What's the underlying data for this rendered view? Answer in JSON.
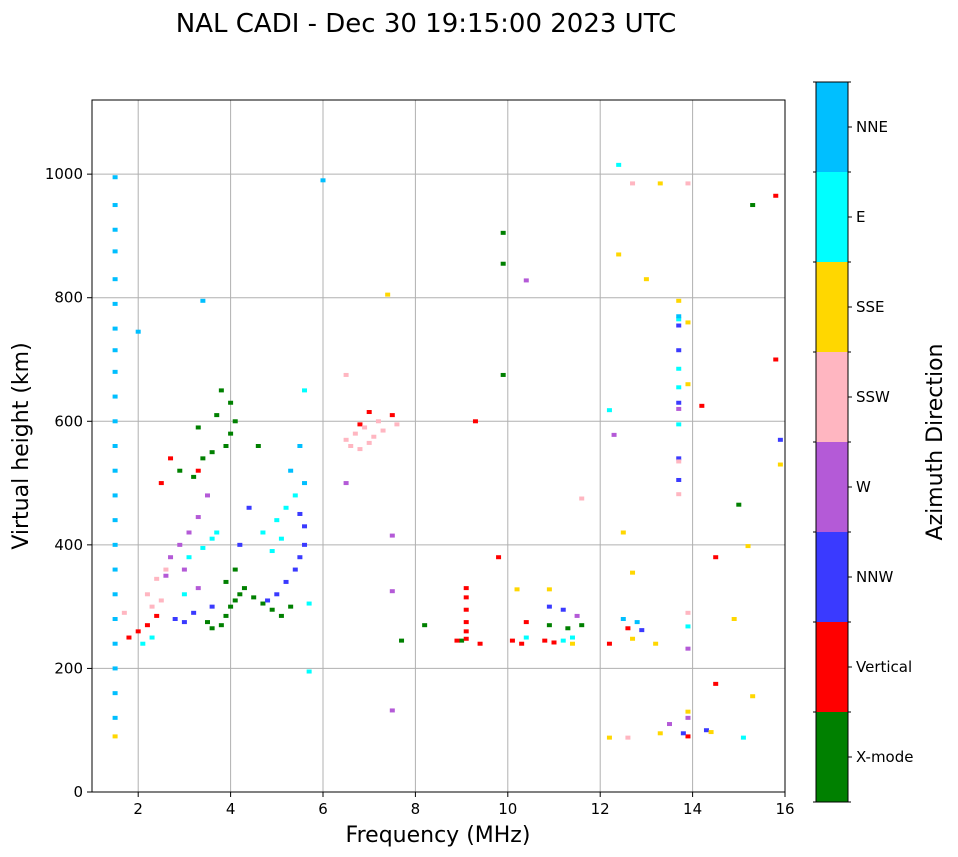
{
  "chart_data": {
    "type": "scatter",
    "title": "NAL CADI - Dec 30 19:15:00 2023 UTC",
    "xlabel": "Frequency (MHz)",
    "ylabel": "Virtual height (km)",
    "xlim": [
      1,
      16
    ],
    "ylim": [
      0,
      1120
    ],
    "xticks": [
      2,
      4,
      6,
      8,
      10,
      12,
      14,
      16
    ],
    "yticks": [
      0,
      200,
      400,
      600,
      800,
      1000
    ],
    "grid": true,
    "colorbar": {
      "label": "Azimuth Direction",
      "categories": [
        {
          "name": "X-mode",
          "color": "#008000"
        },
        {
          "name": "Vertical",
          "color": "#ff0000"
        },
        {
          "name": "NNW",
          "color": "#3a3aff"
        },
        {
          "name": "W",
          "color": "#b45ad7"
        },
        {
          "name": "SSW",
          "color": "#ffb6c1"
        },
        {
          "name": "SSE",
          "color": "#ffd700"
        },
        {
          "name": "E",
          "color": "#00ffff"
        },
        {
          "name": "NNE",
          "color": "#00bfff"
        }
      ]
    },
    "series": [
      {
        "name": "X-mode",
        "points": [
          [
            3.8,
            270
          ],
          [
            3.9,
            285
          ],
          [
            4.0,
            300
          ],
          [
            4.1,
            310
          ],
          [
            4.2,
            320
          ],
          [
            4.3,
            330
          ],
          [
            4.5,
            315
          ],
          [
            4.7,
            305
          ],
          [
            4.9,
            295
          ],
          [
            5.1,
            285
          ],
          [
            5.3,
            300
          ],
          [
            3.5,
            275
          ],
          [
            3.6,
            265
          ],
          [
            3.9,
            340
          ],
          [
            4.1,
            360
          ],
          [
            3.4,
            540
          ],
          [
            3.6,
            550
          ],
          [
            3.9,
            560
          ],
          [
            4.0,
            580
          ],
          [
            4.1,
            600
          ],
          [
            4.0,
            630
          ],
          [
            3.8,
            650
          ],
          [
            2.9,
            520
          ],
          [
            3.2,
            510
          ],
          [
            8.2,
            270
          ],
          [
            9.9,
            905
          ],
          [
            9.9,
            855
          ],
          [
            9.9,
            675
          ],
          [
            15.3,
            950
          ],
          [
            15.0,
            465
          ],
          [
            10.9,
            270
          ],
          [
            11.3,
            265
          ],
          [
            11.6,
            270
          ],
          [
            9.0,
            245
          ],
          [
            7.7,
            245
          ],
          [
            3.7,
            610
          ],
          [
            3.3,
            590
          ],
          [
            4.6,
            560
          ]
        ]
      },
      {
        "name": "Vertical",
        "points": [
          [
            8.9,
            245
          ],
          [
            9.1,
            248
          ],
          [
            9.4,
            240
          ],
          [
            10.1,
            245
          ],
          [
            10.3,
            240
          ],
          [
            10.8,
            245
          ],
          [
            11.0,
            242
          ],
          [
            12.2,
            240
          ],
          [
            14.5,
            380
          ],
          [
            15.8,
            965
          ],
          [
            15.8,
            700
          ],
          [
            14.2,
            625
          ],
          [
            9.3,
            600
          ],
          [
            9.8,
            380
          ],
          [
            9.1,
            330
          ],
          [
            9.1,
            315
          ],
          [
            9.1,
            295
          ],
          [
            9.1,
            275
          ],
          [
            9.1,
            260
          ],
          [
            12.6,
            265
          ],
          [
            13.9,
            90
          ],
          [
            1.8,
            250
          ],
          [
            2.0,
            260
          ],
          [
            2.2,
            270
          ],
          [
            2.4,
            285
          ],
          [
            7.5,
            610
          ],
          [
            7.0,
            615
          ],
          [
            2.7,
            540
          ],
          [
            2.5,
            500
          ],
          [
            3.3,
            520
          ],
          [
            14.5,
            175
          ],
          [
            10.4,
            275
          ],
          [
            6.8,
            595
          ]
        ]
      },
      {
        "name": "NNW",
        "points": [
          [
            5.5,
            380
          ],
          [
            5.4,
            360
          ],
          [
            5.2,
            340
          ],
          [
            5.0,
            320
          ],
          [
            4.8,
            310
          ],
          [
            5.6,
            400
          ],
          [
            5.6,
            430
          ],
          [
            5.5,
            450
          ],
          [
            2.8,
            280
          ],
          [
            3.0,
            275
          ],
          [
            3.2,
            290
          ],
          [
            13.7,
            715
          ],
          [
            13.7,
            755
          ],
          [
            13.7,
            540
          ],
          [
            13.7,
            505
          ],
          [
            13.7,
            630
          ],
          [
            15.9,
            570
          ],
          [
            12.9,
            262
          ],
          [
            11.2,
            295
          ],
          [
            10.9,
            300
          ],
          [
            14.3,
            100
          ],
          [
            13.8,
            95
          ],
          [
            4.2,
            400
          ],
          [
            4.4,
            460
          ],
          [
            3.6,
            300
          ]
        ]
      },
      {
        "name": "W",
        "points": [
          [
            2.9,
            400
          ],
          [
            3.1,
            420
          ],
          [
            3.3,
            445
          ],
          [
            3.5,
            480
          ],
          [
            2.7,
            380
          ],
          [
            3.0,
            360
          ],
          [
            10.4,
            828
          ],
          [
            13.7,
            620
          ],
          [
            13.9,
            232
          ],
          [
            13.5,
            110
          ],
          [
            7.5,
            415
          ],
          [
            7.5,
            325
          ],
          [
            7.5,
            132
          ],
          [
            11.5,
            285
          ],
          [
            6.5,
            500
          ],
          [
            13.9,
            120
          ],
          [
            12.3,
            578
          ],
          [
            3.3,
            330
          ],
          [
            2.6,
            350
          ]
        ]
      },
      {
        "name": "SSW",
        "points": [
          [
            6.5,
            570
          ],
          [
            6.7,
            580
          ],
          [
            6.9,
            590
          ],
          [
            7.1,
            575
          ],
          [
            7.3,
            585
          ],
          [
            7.6,
            595
          ],
          [
            6.6,
            560
          ],
          [
            7.0,
            565
          ],
          [
            7.2,
            600
          ],
          [
            6.8,
            555
          ],
          [
            6.5,
            675
          ],
          [
            12.7,
            985
          ],
          [
            13.9,
            985
          ],
          [
            12.6,
            88
          ],
          [
            13.7,
            535
          ],
          [
            13.7,
            482
          ],
          [
            2.2,
            320
          ],
          [
            2.4,
            345
          ],
          [
            2.6,
            360
          ],
          [
            2.3,
            300
          ],
          [
            2.5,
            310
          ],
          [
            1.7,
            290
          ],
          [
            11.6,
            475
          ],
          [
            13.9,
            290
          ]
        ]
      },
      {
        "name": "SSE",
        "points": [
          [
            13.3,
            985
          ],
          [
            12.4,
            870
          ],
          [
            13.0,
            830
          ],
          [
            13.7,
            795
          ],
          [
            13.9,
            760
          ],
          [
            13.9,
            660
          ],
          [
            15.9,
            530
          ],
          [
            15.2,
            398
          ],
          [
            15.3,
            155
          ],
          [
            14.4,
            97
          ],
          [
            13.3,
            95
          ],
          [
            13.9,
            130
          ],
          [
            12.7,
            248
          ],
          [
            13.2,
            240
          ],
          [
            14.9,
            280
          ],
          [
            7.4,
            805
          ],
          [
            10.2,
            328
          ],
          [
            10.9,
            328
          ],
          [
            12.5,
            420
          ],
          [
            12.2,
            88
          ],
          [
            1.5,
            90
          ],
          [
            11.4,
            240
          ],
          [
            12.7,
            355
          ]
        ]
      },
      {
        "name": "E",
        "points": [
          [
            5.2,
            460
          ],
          [
            5.0,
            440
          ],
          [
            5.4,
            480
          ],
          [
            4.7,
            420
          ],
          [
            4.9,
            390
          ],
          [
            5.1,
            410
          ],
          [
            3.1,
            380
          ],
          [
            3.4,
            395
          ],
          [
            3.6,
            410
          ],
          [
            3.0,
            320
          ],
          [
            2.3,
            250
          ],
          [
            2.1,
            240
          ],
          [
            12.4,
            1015
          ],
          [
            12.2,
            618
          ],
          [
            13.7,
            765
          ],
          [
            13.7,
            685
          ],
          [
            13.7,
            655
          ],
          [
            13.7,
            595
          ],
          [
            13.9,
            268
          ],
          [
            15.1,
            88
          ],
          [
            11.2,
            245
          ],
          [
            11.4,
            250
          ],
          [
            10.4,
            250
          ],
          [
            5.6,
            650
          ],
          [
            5.7,
            305
          ],
          [
            5.7,
            195
          ],
          [
            3.7,
            420
          ]
        ]
      },
      {
        "name": "NNE",
        "points": [
          [
            1.5,
            995
          ],
          [
            1.5,
            950
          ],
          [
            1.5,
            910
          ],
          [
            1.5,
            875
          ],
          [
            1.5,
            830
          ],
          [
            1.5,
            790
          ],
          [
            1.5,
            750
          ],
          [
            1.5,
            715
          ],
          [
            1.5,
            680
          ],
          [
            1.5,
            640
          ],
          [
            1.5,
            600
          ],
          [
            1.5,
            560
          ],
          [
            1.5,
            520
          ],
          [
            1.5,
            480
          ],
          [
            1.5,
            440
          ],
          [
            1.5,
            400
          ],
          [
            1.5,
            360
          ],
          [
            1.5,
            320
          ],
          [
            1.5,
            280
          ],
          [
            1.5,
            240
          ],
          [
            1.5,
            200
          ],
          [
            1.5,
            160
          ],
          [
            1.5,
            120
          ],
          [
            3.4,
            795
          ],
          [
            6.0,
            990
          ],
          [
            12.5,
            280
          ],
          [
            12.8,
            275
          ],
          [
            13.7,
            770
          ],
          [
            5.5,
            560
          ],
          [
            5.3,
            520
          ],
          [
            5.6,
            500
          ],
          [
            2.0,
            745
          ]
        ]
      }
    ]
  }
}
